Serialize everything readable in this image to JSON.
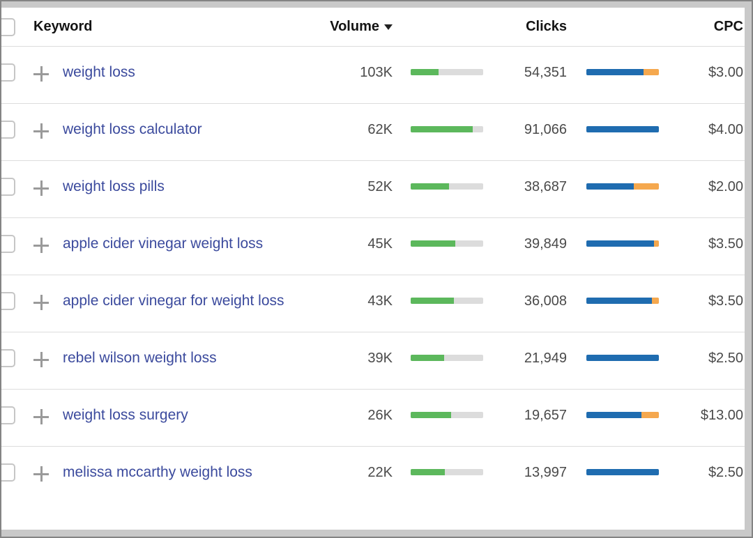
{
  "table": {
    "header": {
      "keyword_label": "Keyword",
      "volume_label": "Volume",
      "volume_sort": "desc",
      "clicks_label": "Clicks",
      "cpc_label": "CPC"
    },
    "rows": [
      {
        "keyword": "weight loss",
        "volume": "103K",
        "volume_bar_pct": 38,
        "clicks": "54,351",
        "clicks_blue_pct": 79,
        "clicks_orange_pct": 21,
        "cpc": "$3.00"
      },
      {
        "keyword": "weight loss calculator",
        "volume": "62K",
        "volume_bar_pct": 86,
        "clicks": "91,066",
        "clicks_blue_pct": 100,
        "clicks_orange_pct": 0,
        "cpc": "$4.00"
      },
      {
        "keyword": "weight loss pills",
        "volume": "52K",
        "volume_bar_pct": 53,
        "clicks": "38,687",
        "clicks_blue_pct": 65,
        "clicks_orange_pct": 35,
        "cpc": "$2.00"
      },
      {
        "keyword": "apple cider vinegar weight loss",
        "volume": "45K",
        "volume_bar_pct": 62,
        "clicks": "39,849",
        "clicks_blue_pct": 93,
        "clicks_orange_pct": 7,
        "cpc": "$3.50"
      },
      {
        "keyword": "apple cider vinegar for weight loss",
        "volume": "43K",
        "volume_bar_pct": 60,
        "clicks": "36,008",
        "clicks_blue_pct": 90,
        "clicks_orange_pct": 10,
        "cpc": "$3.50"
      },
      {
        "keyword": "rebel wilson weight loss",
        "volume": "39K",
        "volume_bar_pct": 46,
        "clicks": "21,949",
        "clicks_blue_pct": 100,
        "clicks_orange_pct": 0,
        "cpc": "$2.50"
      },
      {
        "keyword": "weight loss surgery",
        "volume": "26K",
        "volume_bar_pct": 56,
        "clicks": "19,657",
        "clicks_blue_pct": 76,
        "clicks_orange_pct": 24,
        "cpc": "$13.00"
      },
      {
        "keyword": "melissa mccarthy weight loss",
        "volume": "22K",
        "volume_bar_pct": 47,
        "clicks": "13,997",
        "clicks_blue_pct": 100,
        "clicks_orange_pct": 0,
        "cpc": "$2.50"
      }
    ]
  },
  "colors": {
    "keyword_link": "#3b4a9d",
    "value_text": "#4a4a4a",
    "volume_bar_green": "#5cb85c",
    "bar_track_gray": "#dcdcdc",
    "clicks_bar_blue": "#1f6cb0",
    "clicks_bar_orange": "#f5a84e",
    "frame_gray": "#c9c9c9"
  }
}
